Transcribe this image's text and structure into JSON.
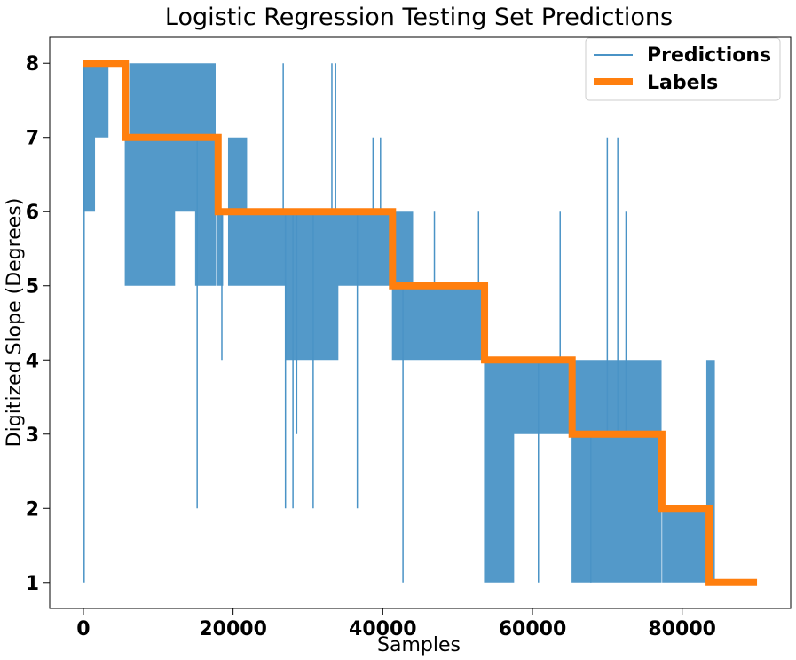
{
  "chart_data": {
    "type": "line",
    "title": "Logistic Regression Testing Set Predictions",
    "xlabel": "Samples",
    "ylabel": "Digitized Slope (Degrees)",
    "xlim": [
      -4500,
      94500
    ],
    "ylim": [
      0.65,
      8.35
    ],
    "x_ticks": [
      0,
      20000,
      40000,
      60000,
      80000
    ],
    "y_ticks": [
      1,
      2,
      3,
      4,
      5,
      6,
      7,
      8
    ],
    "grid": false,
    "legend_position": "top-right",
    "series": [
      {
        "name": "Predictions",
        "color": "#4a93c6",
        "style": "thin-line",
        "noise_bands": [
          {
            "x0": 0,
            "x1": 600,
            "lo": 6,
            "hi": 8
          },
          {
            "x0": 600,
            "x1": 1500,
            "lo": 6,
            "hi": 8
          },
          {
            "x0": 1500,
            "x1": 2200,
            "lo": 7,
            "hi": 8
          },
          {
            "x0": 2200,
            "x1": 3300,
            "lo": 7,
            "hi": 8
          },
          {
            "x0": 5600,
            "x1": 6200,
            "lo": 5,
            "hi": 7
          },
          {
            "x0": 6200,
            "x1": 8300,
            "lo": 5,
            "hi": 8
          },
          {
            "x0": 8300,
            "x1": 12200,
            "lo": 5,
            "hi": 8
          },
          {
            "x0": 12200,
            "x1": 15000,
            "lo": 6,
            "hi": 8
          },
          {
            "x0": 15000,
            "x1": 17600,
            "lo": 5,
            "hi": 8
          },
          {
            "x0": 17800,
            "x1": 18600,
            "lo": 5,
            "hi": 6
          },
          {
            "x0": 19400,
            "x1": 21800,
            "lo": 5,
            "hi": 7
          },
          {
            "x0": 21800,
            "x1": 27000,
            "lo": 5,
            "hi": 6
          },
          {
            "x0": 27000,
            "x1": 34000,
            "lo": 4,
            "hi": 6
          },
          {
            "x0": 34000,
            "x1": 41200,
            "lo": 5,
            "hi": 6
          },
          {
            "x0": 41300,
            "x1": 44000,
            "lo": 4,
            "hi": 6
          },
          {
            "x0": 44000,
            "x1": 53500,
            "lo": 4,
            "hi": 5
          },
          {
            "x0": 53600,
            "x1": 57500,
            "lo": 1,
            "hi": 4
          },
          {
            "x0": 57500,
            "x1": 65300,
            "lo": 3,
            "hi": 4
          },
          {
            "x0": 65300,
            "x1": 72500,
            "lo": 1,
            "hi": 4
          },
          {
            "x0": 72500,
            "x1": 77200,
            "lo": 1,
            "hi": 4
          },
          {
            "x0": 77400,
            "x1": 83300,
            "lo": 1,
            "hi": 2
          },
          {
            "x0": 83300,
            "x1": 84300,
            "lo": 1,
            "hi": 4
          }
        ],
        "spikes": [
          [
            100,
            1
          ],
          [
            4400,
            8
          ],
          [
            15200,
            2
          ],
          [
            18500,
            4
          ],
          [
            26700,
            8
          ],
          [
            27000,
            2
          ],
          [
            28000,
            2
          ],
          [
            28500,
            3
          ],
          [
            30700,
            2
          ],
          [
            33200,
            8
          ],
          [
            33700,
            8
          ],
          [
            36600,
            2
          ],
          [
            38700,
            7
          ],
          [
            39700,
            7
          ],
          [
            42700,
            1
          ],
          [
            46900,
            6
          ],
          [
            52800,
            6
          ],
          [
            60800,
            1
          ],
          [
            63700,
            6
          ],
          [
            67800,
            1
          ],
          [
            70000,
            7
          ],
          [
            71400,
            7
          ],
          [
            72500,
            6
          ]
        ]
      },
      {
        "name": "Labels",
        "color": "#ff7f0e",
        "style": "thick-step",
        "x": [
          0,
          5600,
          5600,
          18000,
          18000,
          41300,
          41300,
          53600,
          53600,
          65300,
          65300,
          77300,
          77300,
          83600,
          83600,
          90000
        ],
        "y": [
          8,
          8,
          7,
          7,
          6,
          6,
          5,
          5,
          4,
          4,
          3,
          3,
          2,
          2,
          1,
          1
        ]
      }
    ]
  }
}
